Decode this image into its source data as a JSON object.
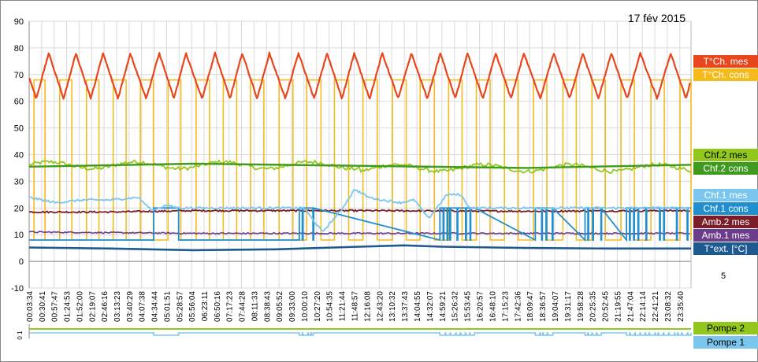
{
  "chart_data": [
    {
      "type": "line",
      "title": "17 fév 2015",
      "ylim": [
        -10,
        90
      ],
      "yticks": [
        -10,
        0,
        10,
        20,
        30,
        40,
        50,
        60,
        70,
        80,
        90
      ],
      "x_range": [
        "00:03:34",
        "23:59:59"
      ],
      "xticks": [
        "00:03:34",
        "00:30:41",
        "00:57:47",
        "01:24:53",
        "01:52:00",
        "02:19:07",
        "02:46:16",
        "03:13:23",
        "03:40:29",
        "04:07:38",
        "04:34:44",
        "05:01:51",
        "05:28:57",
        "05:56:04",
        "06:23:11",
        "06:50:16",
        "07:17:23",
        "07:44:28",
        "08:11:33",
        "08:38:43",
        "09:05:52",
        "09:33:00",
        "10:00:10",
        "10:27:20",
        "10:54:35",
        "11:21:44",
        "11:48:57",
        "12:16:08",
        "12:43:20",
        "13:10:32",
        "13:37:43",
        "14:04:55",
        "14:32:07",
        "14:59:21",
        "15:26:32",
        "15:53:45",
        "16:20:57",
        "16:48:10",
        "17:15:23",
        "17:42:36",
        "18:09:47",
        "18:36:57",
        "19:04:07",
        "19:31:17",
        "19:58:28",
        "20:25:35",
        "20:52:45",
        "21:19:55",
        "21:47:04",
        "22:14:14",
        "22:41:21",
        "23:08:32",
        "23:35:40"
      ],
      "grid": true,
      "legend_position": "right",
      "series": [
        {
          "name": "T°Ch. mes",
          "color": "#E8461C",
          "pattern": "sawtooth",
          "min": 61,
          "max": 78,
          "peaks": [
            "00:46:00",
            "01:45:00",
            "02:44:00",
            "03:43:00",
            "04:46:00",
            "05:44:00",
            "06:47:00",
            "07:46:00",
            "08:45:00",
            "09:48:00",
            "10:50:00",
            "11:49:00",
            "12:50:00",
            "13:53:00",
            "14:56:00",
            "15:55:00",
            "16:56:00",
            "17:57:00",
            "19:02:00",
            "20:05:00",
            "21:07:00",
            "22:10:00",
            "23:16:00"
          ]
        },
        {
          "name": "T°Ch. cons",
          "color": "#F5BB1C",
          "pattern": "square",
          "low": 8,
          "high": 68,
          "on_periods": [
            [
              "00:14:00",
              "00:38:00"
            ],
            [
              "01:10:00",
              "01:36:00"
            ],
            [
              "02:08:00",
              "02:35:00"
            ],
            [
              "03:06:00",
              "03:34:00"
            ],
            [
              "04:05:00",
              "04:33:00"
            ],
            [
              "05:05:00",
              "05:33:00"
            ],
            [
              "06:06:00",
              "06:35:00"
            ],
            [
              "07:05:00",
              "07:34:00"
            ],
            [
              "08:04:00",
              "08:33:00"
            ],
            [
              "09:06:00",
              "09:36:00"
            ],
            [
              "10:06:00",
              "10:37:00"
            ],
            [
              "11:06:00",
              "11:37:00"
            ],
            [
              "12:08:00",
              "12:39:00"
            ],
            [
              "13:12:00",
              "13:42:00"
            ],
            [
              "14:12:00",
              "14:43:00"
            ],
            [
              "15:14:00",
              "15:43:00"
            ],
            [
              "16:14:00",
              "16:44:00"
            ],
            [
              "17:15:00",
              "17:45:00"
            ],
            [
              "18:18:00",
              "18:47:00"
            ],
            [
              "19:22:00",
              "19:51:00"
            ],
            [
              "20:25:00",
              "20:54:00"
            ],
            [
              "21:28:00",
              "21:57:00"
            ],
            [
              "22:33:00",
              "23:02:00"
            ],
            [
              "23:36:00",
              "23:59:59"
            ]
          ]
        },
        {
          "name": "Chf.2 mes",
          "color": "#92C81E",
          "pattern": "wavy",
          "mean": 36,
          "amplitude": 1.6
        },
        {
          "name": "Chf.2 cons",
          "color": "#3F9A1F",
          "x": [
            "00:03:34",
            "06:00:00",
            "12:00:00",
            "18:00:00",
            "23:59:59"
          ],
          "values": [
            35.5,
            36.6,
            35.8,
            35,
            36.2
          ]
        },
        {
          "name": "Chf.1 mes",
          "color": "#7BC6EE",
          "x": [
            "00:03:34",
            "01:00:00",
            "02:00:00",
            "03:00:00",
            "04:00:00",
            "04:30:00",
            "05:00:00",
            "05:30:00",
            "06:00:00",
            "07:00:00",
            "08:00:00",
            "09:00:00",
            "09:30:00",
            "10:00:00",
            "10:40:00",
            "11:20:00",
            "11:50:00",
            "12:20:00",
            "12:50:00",
            "13:30:00",
            "14:00:00",
            "14:30:00",
            "15:10:00",
            "15:40:00",
            "16:00:00",
            "24:00:00"
          ],
          "values": [
            24,
            22,
            23,
            23,
            24,
            19,
            21,
            20,
            20,
            20,
            20,
            20,
            20,
            20,
            11,
            19,
            27,
            24,
            23,
            22,
            23,
            16,
            25,
            25,
            20,
            20
          ]
        },
        {
          "name": "Chf.1 cons",
          "color": "#1F8FD0",
          "pattern": "step",
          "high": 20,
          "low": 8,
          "active_regions": [
            [
              "04:34:00",
              "05:28:00"
            ],
            [
              "09:50:00",
              "10:20:00"
            ],
            [
              "14:55:00",
              "16:10:00"
            ],
            [
              "18:22:00",
              "19:00:00"
            ],
            [
              "20:10:00",
              "20:45:00"
            ],
            [
              "21:40:00",
              "23:59:59"
            ]
          ]
        },
        {
          "name": "Amb.2 mes",
          "color": "#7A1F2A",
          "x": [
            "00:03:34",
            "03:00:00",
            "06:00:00",
            "12:00:00",
            "18:00:00",
            "23:59:59"
          ],
          "values": [
            18.5,
            18.5,
            19,
            19,
            18.8,
            19
          ]
        },
        {
          "name": "Amb.1 mes",
          "color": "#6B3D8C",
          "x": [
            "00:03:34",
            "06:00:00",
            "12:00:00",
            "18:00:00",
            "23:59:59"
          ],
          "values": [
            11,
            10.5,
            10.5,
            10.5,
            10.5
          ]
        },
        {
          "name": "T°ext. [°C]",
          "color": "#1F5A8F",
          "x": [
            "00:03:34",
            "03:00:00",
            "06:00:00",
            "09:00:00",
            "12:00:00",
            "13:37:00",
            "15:00:00",
            "18:00:00",
            "21:00:00",
            "23:59:59"
          ],
          "values": [
            5.2,
            4.8,
            4.2,
            4.5,
            5.5,
            6,
            5.5,
            5,
            4.8,
            4.8
          ]
        }
      ],
      "side_value": "5"
    },
    {
      "type": "line",
      "ytick_label": "0 1",
      "series": [
        {
          "name": "Pompe 2",
          "color": "#92C81E",
          "values_constant": 1
        },
        {
          "name": "Pompe 1",
          "color": "#7BC6EE",
          "follows": "Chf.1 cons"
        }
      ]
    }
  ]
}
